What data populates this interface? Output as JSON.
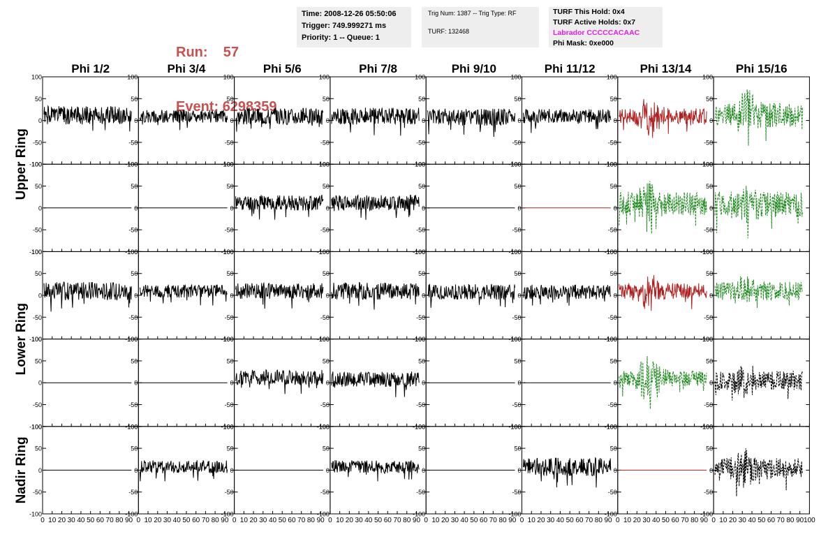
{
  "header": {
    "run_label": "Run:",
    "run_value": "57",
    "event_label": "Event:",
    "event_value": "6298359"
  },
  "info": {
    "time": "Time: 2008-12-26 05:50:06",
    "trigger": "Trigger: 749.999271 ms",
    "priority": "Priority: 1 -- Queue: 1",
    "trig_num": "Trig Num: 1387 -- Trig Type: RF",
    "turf": "TURF: 132468",
    "turf_hold": "TURF This Hold: 0x4",
    "turf_active": "TURF Active Holds: 0x7",
    "labrador": "Labrador CCCCCACAAC",
    "phi_mask": "Phi Mask: 0xe000"
  },
  "colors": {
    "header_red": "#c8504f",
    "trace_black": "#000000",
    "trace_red": "#b02020",
    "trace_green": "#1e8a1e",
    "magenta": "#e020e0"
  },
  "chart_data": {
    "type": "line",
    "columns": [
      "Phi 1/2",
      "Phi 3/4",
      "Phi 5/6",
      "Phi 7/8",
      "Phi 9/10",
      "Phi 11/12",
      "Phi 13/14",
      "Phi 15/16"
    ],
    "ring_labels": [
      "Upper Ring",
      "Lower Ring",
      "Nadir Ring"
    ],
    "row_ring_index": [
      0,
      0,
      1,
      1,
      2
    ],
    "ylim": [
      -100,
      100
    ],
    "xlim": [
      0,
      100
    ],
    "y_ticks": [
      -100,
      -50,
      0,
      50,
      100
    ],
    "x_ticks": [
      0,
      10,
      20,
      30,
      40,
      50,
      60,
      70,
      80,
      90,
      100
    ],
    "x_tick_labels": [
      "0",
      "10",
      "20",
      "30",
      "40",
      "50",
      "60",
      "70",
      "80",
      "90",
      "100"
    ],
    "grid": false,
    "panels": [
      [
        {
          "color": "#000000",
          "dashed": false,
          "amp": 14,
          "off": 12,
          "seed": 1,
          "burst": 0
        },
        {
          "color": "#000000",
          "dashed": false,
          "amp": 10,
          "off": 10,
          "seed": 2,
          "burst": 0
        },
        {
          "color": "#000000",
          "dashed": false,
          "amp": 13,
          "off": 10,
          "seed": 3,
          "burst": 0
        },
        {
          "color": "#000000",
          "dashed": false,
          "amp": 13,
          "off": 10,
          "seed": 4,
          "burst": 0
        },
        {
          "color": "#000000",
          "dashed": false,
          "amp": 13,
          "off": 8,
          "seed": 5,
          "burst": 0
        },
        {
          "color": "#000000",
          "dashed": false,
          "amp": 11,
          "off": 10,
          "seed": 6,
          "burst": 0
        },
        {
          "color": "#b02020",
          "dashed": false,
          "amp": 12,
          "off": 10,
          "seed": 7,
          "burst": 40
        },
        {
          "color": "#1e8a1e",
          "dashed": true,
          "amp": 18,
          "off": 12,
          "seed": 8,
          "burst": 55
        }
      ],
      [
        {
          "color": "#000000",
          "dashed": false,
          "amp": 0,
          "off": 0,
          "seed": 9,
          "burst": 0
        },
        {
          "color": "#000000",
          "dashed": false,
          "amp": 0,
          "off": 0,
          "seed": 10,
          "burst": 0
        },
        {
          "color": "#000000",
          "dashed": false,
          "amp": 12,
          "off": 12,
          "seed": 11,
          "burst": 0
        },
        {
          "color": "#000000",
          "dashed": false,
          "amp": 12,
          "off": 12,
          "seed": 12,
          "burst": 0
        },
        {
          "color": "#000000",
          "dashed": false,
          "amp": 0,
          "off": 0,
          "seed": 13,
          "burst": 0
        },
        {
          "color": "#b02020",
          "dashed": false,
          "amp": 0,
          "off": 0,
          "seed": 14,
          "burst": 0
        },
        {
          "color": "#1e8a1e",
          "dashed": true,
          "amp": 18,
          "off": 10,
          "seed": 15,
          "burst": 55
        },
        {
          "color": "#1e8a1e",
          "dashed": true,
          "amp": 20,
          "off": 8,
          "seed": 16,
          "burst": 25
        }
      ],
      [
        {
          "color": "#000000",
          "dashed": false,
          "amp": 14,
          "off": 10,
          "seed": 17,
          "burst": 0
        },
        {
          "color": "#000000",
          "dashed": false,
          "amp": 10,
          "off": 10,
          "seed": 18,
          "burst": 0
        },
        {
          "color": "#000000",
          "dashed": false,
          "amp": 12,
          "off": 10,
          "seed": 19,
          "burst": 0
        },
        {
          "color": "#000000",
          "dashed": false,
          "amp": 13,
          "off": 10,
          "seed": 20,
          "burst": 0
        },
        {
          "color": "#000000",
          "dashed": false,
          "amp": 12,
          "off": 8,
          "seed": 21,
          "burst": 0
        },
        {
          "color": "#000000",
          "dashed": false,
          "amp": 11,
          "off": 8,
          "seed": 22,
          "burst": 0
        },
        {
          "color": "#b02020",
          "dashed": false,
          "amp": 12,
          "off": 10,
          "seed": 23,
          "burst": 35
        },
        {
          "color": "#1e8a1e",
          "dashed": true,
          "amp": 14,
          "off": 10,
          "seed": 24,
          "burst": 25
        }
      ],
      [
        {
          "color": "#000000",
          "dashed": false,
          "amp": 0,
          "off": 0,
          "seed": 25,
          "burst": 0
        },
        {
          "color": "#000000",
          "dashed": false,
          "amp": 0,
          "off": 0,
          "seed": 26,
          "burst": 0
        },
        {
          "color": "#000000",
          "dashed": false,
          "amp": 12,
          "off": 12,
          "seed": 27,
          "burst": 0
        },
        {
          "color": "#000000",
          "dashed": false,
          "amp": 12,
          "off": 8,
          "seed": 28,
          "burst": 0
        },
        {
          "color": "#000000",
          "dashed": false,
          "amp": 0,
          "off": 0,
          "seed": 29,
          "burst": 0
        },
        {
          "color": "#000000",
          "dashed": false,
          "amp": 0,
          "off": 0,
          "seed": 30,
          "burst": 0
        },
        {
          "color": "#1e8a1e",
          "dashed": true,
          "amp": 12,
          "off": 10,
          "seed": 31,
          "burst": 60
        },
        {
          "color": "#000000",
          "dashed": true,
          "amp": 15,
          "off": 5,
          "seed": 32,
          "burst": 20
        }
      ],
      [
        {
          "color": "#000000",
          "dashed": false,
          "amp": 0,
          "off": 0,
          "seed": 33,
          "burst": 0
        },
        {
          "color": "#000000",
          "dashed": false,
          "amp": 10,
          "off": 8,
          "seed": 34,
          "burst": 0
        },
        {
          "color": "#000000",
          "dashed": false,
          "amp": 0,
          "off": 0,
          "seed": 35,
          "burst": 0
        },
        {
          "color": "#000000",
          "dashed": false,
          "amp": 10,
          "off": 8,
          "seed": 36,
          "burst": 0
        },
        {
          "color": "#000000",
          "dashed": false,
          "amp": 0,
          "off": 0,
          "seed": 37,
          "burst": 0
        },
        {
          "color": "#000000",
          "dashed": false,
          "amp": 14,
          "off": 8,
          "seed": 38,
          "burst": 0
        },
        {
          "color": "#b02020",
          "dashed": false,
          "amp": 0,
          "off": 0,
          "seed": 39,
          "burst": 0
        },
        {
          "color": "#000000",
          "dashed": true,
          "amp": 15,
          "off": 5,
          "seed": 40,
          "burst": 40
        }
      ]
    ]
  }
}
